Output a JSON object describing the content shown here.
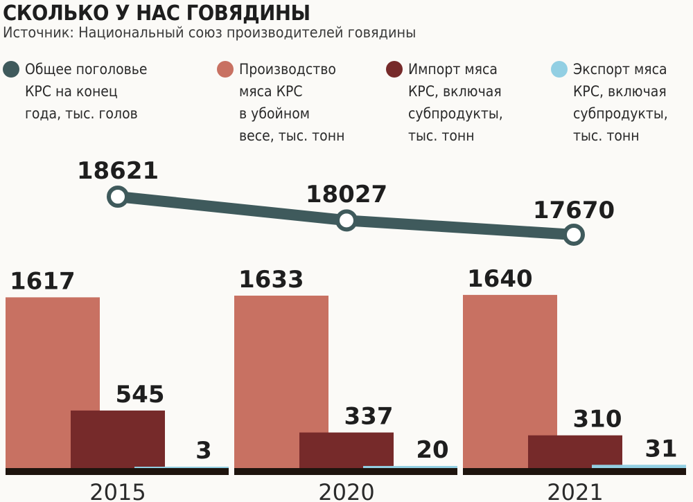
{
  "title": "СКОЛЬКО У НАС ГОВЯДИНЫ",
  "subtitle": "Источник: Национальный союз производителей говядины",
  "colors": {
    "herd": "#3f5a5c",
    "production": "#c87162",
    "import": "#762a2a",
    "export": "#92cfe3",
    "baseline": "#1e140e"
  },
  "legend": [
    {
      "key": "herd",
      "label": "Общее поголовье\nКРС на конец\nгода, тыс. голов"
    },
    {
      "key": "production",
      "label": "Производство\nмяса КРС\nв убойном\nвесе, тыс. тонн"
    },
    {
      "key": "import",
      "label": "Импорт мяса\nКРС, включая\nсубпродукты,\nтыс. тонн"
    },
    {
      "key": "export",
      "label": "Экспорт мяса\nКРС, включая\nсубпродукты,\nтыс. тонн"
    }
  ],
  "chart_data": {
    "type": "bar",
    "categories": [
      "2015",
      "2020",
      "2021"
    ],
    "series": [
      {
        "name": "Производство мяса КРС в убойном весе, тыс. тонн",
        "key": "production",
        "values": [
          1617,
          1633,
          1640
        ]
      },
      {
        "name": "Импорт мяса КРС, включая субпродукты, тыс. тонн",
        "key": "import",
        "values": [
          545,
          337,
          310
        ]
      },
      {
        "name": "Экспорт мяса КРС, включая субпродукты, тыс. тонн",
        "key": "export",
        "values": [
          3,
          20,
          31
        ]
      }
    ],
    "line_series": {
      "name": "Общее поголовье КРС на конец года, тыс. голов",
      "key": "herd",
      "values": [
        18621,
        18027,
        17670
      ]
    },
    "legend_position": "top",
    "grid": false
  }
}
